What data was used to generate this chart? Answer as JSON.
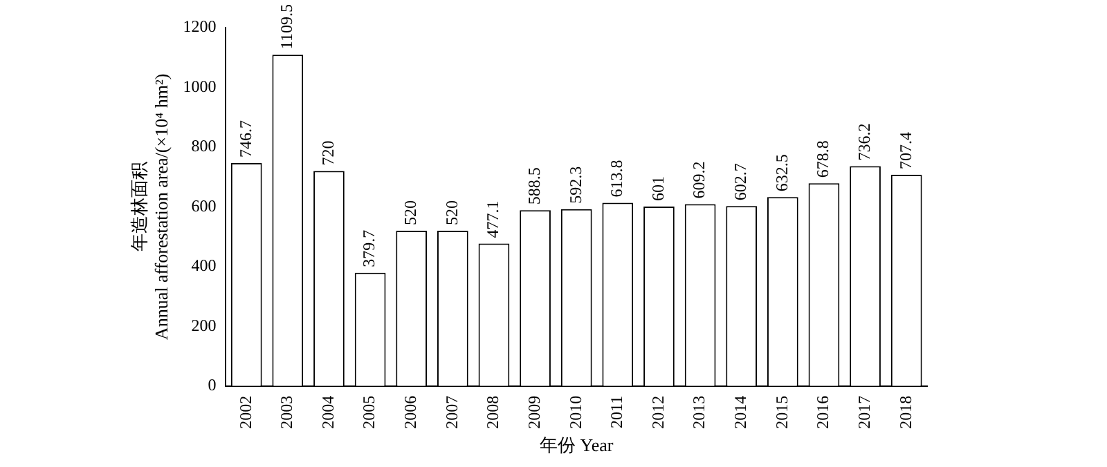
{
  "chart_data": {
    "type": "bar",
    "categories": [
      "2002",
      "2003",
      "2004",
      "2005",
      "2006",
      "2007",
      "2008",
      "2009",
      "2010",
      "2011",
      "2012",
      "2013",
      "2014",
      "2015",
      "2016",
      "2017",
      "2018"
    ],
    "values": [
      746.7,
      1109.5,
      720,
      379.7,
      520,
      520,
      477.1,
      588.5,
      592.3,
      613.8,
      601,
      609.2,
      602.7,
      632.5,
      678.8,
      736.2,
      707.4
    ],
    "color": "#ffffff",
    "xlabel": "年份 Year",
    "ylabel": "年造林面积\nAnnual afforestation area/(×10⁴ hm²)",
    "ylim": [
      0,
      1200
    ],
    "yticks": [
      0,
      200,
      400,
      600,
      800,
      1000,
      1200
    ],
    "data_labels": true,
    "grid": false,
    "legend": false
  }
}
